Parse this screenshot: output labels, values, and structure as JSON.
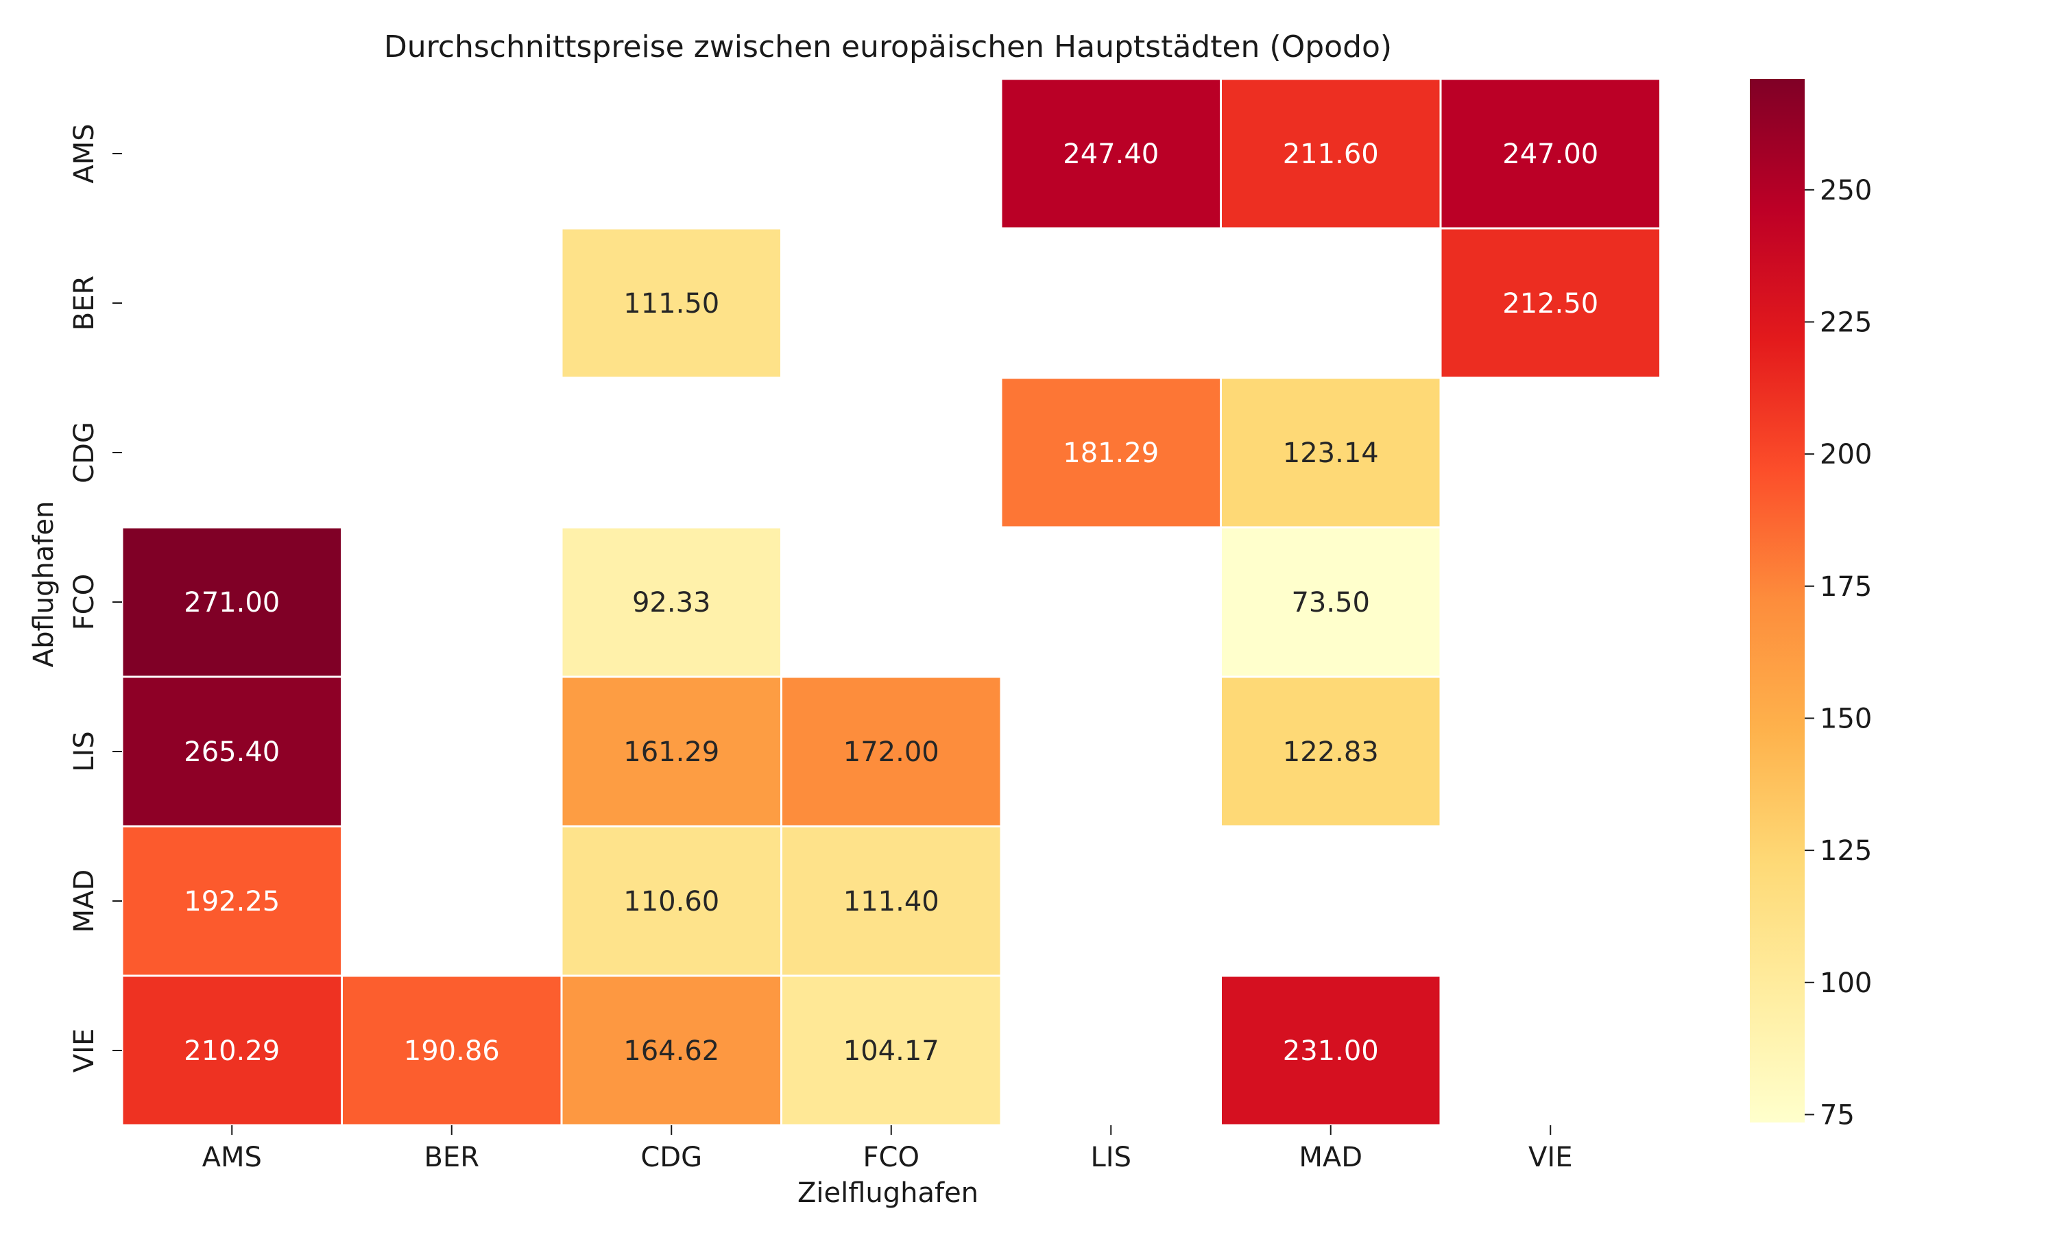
{
  "chart_data": {
    "type": "heatmap",
    "title": "Durchschnittspreise zwischen europäischen Hauptstädten (Opodo)",
    "xlabel": "Zielflughafen",
    "ylabel": "Abflughafen",
    "x_categories": [
      "AMS",
      "BER",
      "CDG",
      "FCO",
      "LIS",
      "MAD",
      "VIE"
    ],
    "y_categories": [
      "AMS",
      "BER",
      "CDG",
      "FCO",
      "LIS",
      "MAD",
      "VIE"
    ],
    "values": [
      [
        null,
        null,
        null,
        null,
        247.4,
        211.6,
        247.0
      ],
      [
        null,
        null,
        111.5,
        null,
        null,
        null,
        212.5
      ],
      [
        null,
        null,
        null,
        null,
        181.29,
        123.14,
        null
      ],
      [
        271.0,
        null,
        92.33,
        null,
        null,
        73.5,
        null
      ],
      [
        265.4,
        null,
        161.29,
        172.0,
        null,
        122.83,
        null
      ],
      [
        192.25,
        null,
        110.6,
        111.4,
        null,
        null,
        null
      ],
      [
        210.29,
        190.86,
        164.62,
        104.17,
        null,
        231.0,
        null
      ]
    ],
    "value_format_decimals": 2,
    "colorbar": {
      "colormap": "YlOrRd",
      "range": [
        73.5,
        271.0
      ],
      "ticks": [
        75,
        100,
        125,
        150,
        175,
        200,
        225,
        250
      ]
    },
    "grid": false
  }
}
